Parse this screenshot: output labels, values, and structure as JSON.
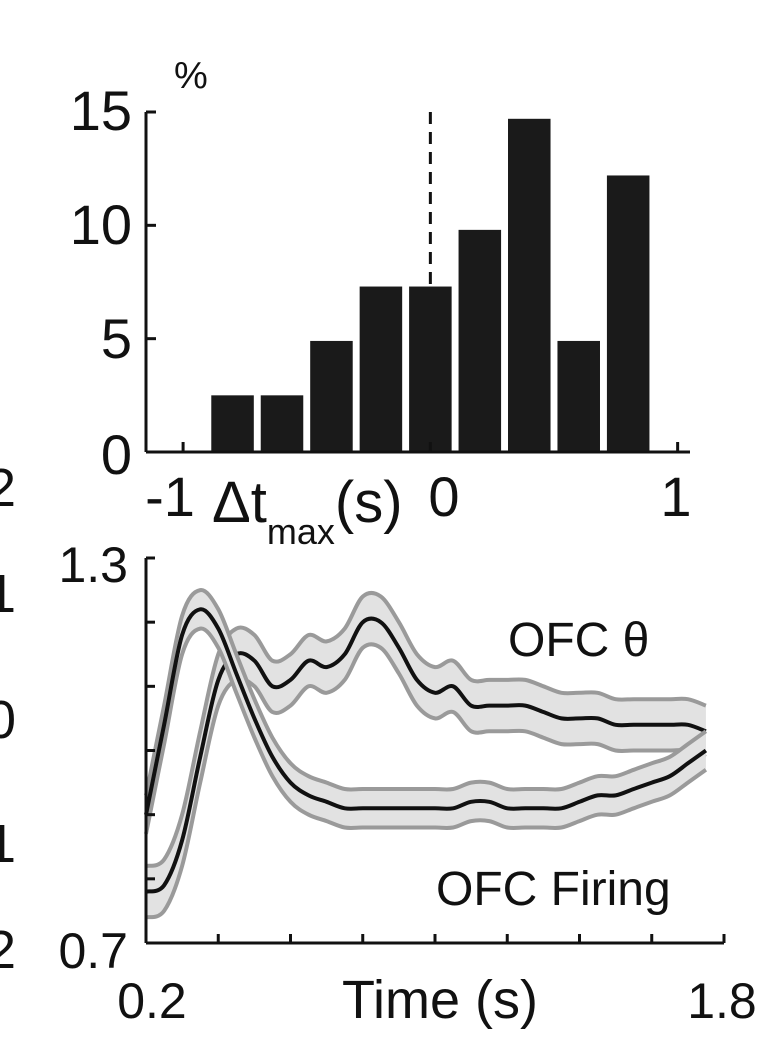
{
  "chart_data": [
    {
      "type": "bar",
      "ylabel": "%",
      "xlabel_main": "Δt",
      "xlabel_sub": "max",
      "xlabel_unit": "(s)",
      "xlim": [
        -1,
        1
      ],
      "ylim": [
        0,
        15
      ],
      "x_ticks": [
        "-1",
        "0",
        "1"
      ],
      "y_ticks": [
        "0",
        "5",
        "10",
        "15"
      ],
      "bin_centers": [
        -0.8,
        -0.6,
        -0.4,
        -0.2,
        0.0,
        0.2,
        0.4,
        0.6,
        0.8
      ],
      "values": [
        2.5,
        2.5,
        4.9,
        7.3,
        7.3,
        9.8,
        14.7,
        4.9,
        12.2
      ],
      "reference_line_x": 0,
      "bar_color": "#1a1a1a",
      "grid": false
    },
    {
      "type": "line",
      "xlabel": "Time (s)",
      "ylabel": "",
      "xlim": [
        0.2,
        1.8
      ],
      "ylim": [
        0.7,
        1.3
      ],
      "x_ticks": [
        "0.2",
        "1.8"
      ],
      "y_ticks": [
        "0.7",
        "1.3"
      ],
      "left_tick_fragments": [
        "2",
        "1",
        "0",
        "1",
        "2"
      ],
      "series": [
        {
          "name": "OFC θ",
          "x": [
            0.2,
            0.25,
            0.3,
            0.35,
            0.4,
            0.45,
            0.5,
            0.55,
            0.6,
            0.65,
            0.7,
            0.75,
            0.8,
            0.85,
            0.9,
            0.95,
            1.0,
            1.05,
            1.1,
            1.15,
            1.2,
            1.25,
            1.3,
            1.35,
            1.4,
            1.45,
            1.5,
            1.55,
            1.6,
            1.65,
            1.7,
            1.75
          ],
          "y": [
            0.78,
            0.79,
            0.86,
            0.99,
            1.11,
            1.15,
            1.14,
            1.1,
            1.11,
            1.14,
            1.13,
            1.15,
            1.2,
            1.2,
            1.16,
            1.11,
            1.09,
            1.1,
            1.07,
            1.07,
            1.07,
            1.07,
            1.06,
            1.05,
            1.05,
            1.05,
            1.04,
            1.04,
            1.04,
            1.04,
            1.04,
            1.03
          ],
          "band": 0.04,
          "line_color": "#111111",
          "band_color": "#e2e2e2",
          "band_edge_color": "#9a9a9a"
        },
        {
          "name": "OFC Firing",
          "x": [
            0.2,
            0.25,
            0.3,
            0.35,
            0.4,
            0.45,
            0.5,
            0.55,
            0.6,
            0.65,
            0.7,
            0.75,
            0.8,
            0.85,
            0.9,
            0.95,
            1.0,
            1.05,
            1.1,
            1.15,
            1.2,
            1.25,
            1.3,
            1.35,
            1.4,
            1.45,
            1.5,
            1.55,
            1.6,
            1.65,
            1.7,
            1.75
          ],
          "y": [
            0.9,
            1.04,
            1.18,
            1.22,
            1.19,
            1.12,
            1.05,
            0.99,
            0.95,
            0.93,
            0.92,
            0.91,
            0.91,
            0.91,
            0.91,
            0.91,
            0.91,
            0.91,
            0.92,
            0.92,
            0.91,
            0.91,
            0.91,
            0.91,
            0.92,
            0.93,
            0.93,
            0.94,
            0.95,
            0.96,
            0.98,
            1.0
          ],
          "band": 0.03,
          "line_color": "#111111",
          "band_color": "#e2e2e2",
          "band_edge_color": "#9a9a9a"
        }
      ],
      "annotations": [
        "OFC θ",
        "OFC Firing"
      ],
      "grid": false
    }
  ]
}
